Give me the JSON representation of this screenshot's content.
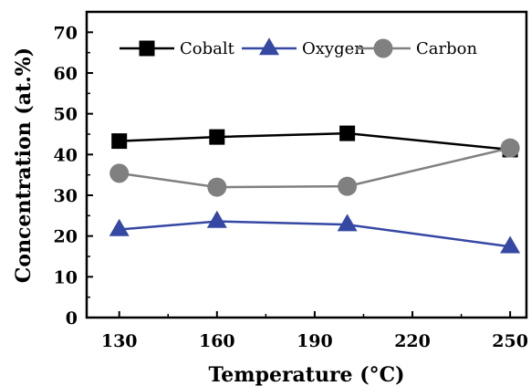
{
  "chart_data": {
    "type": "line",
    "xlabel": "Temperature (°C)",
    "ylabel": "Concentration (at.%)",
    "xlim": [
      120,
      255
    ],
    "ylim": [
      0,
      75
    ],
    "xticks": [
      130,
      160,
      190,
      220,
      250
    ],
    "yticks": [
      0,
      10,
      20,
      30,
      40,
      50,
      60,
      70
    ],
    "grid": false,
    "legend_position": "top",
    "series": [
      {
        "name": "Cobalt",
        "marker": "square",
        "color": "#000000",
        "x": [
          130,
          160,
          200,
          250
        ],
        "y": [
          43.3,
          44.3,
          45.2,
          41.2
        ]
      },
      {
        "name": "Oxygen",
        "marker": "triangle",
        "color": "#3548a3",
        "x": [
          130,
          160,
          200,
          250
        ],
        "y": [
          21.6,
          23.6,
          22.8,
          17.4
        ]
      },
      {
        "name": "Carbon",
        "marker": "circle",
        "color": "#808080",
        "x": [
          130,
          160,
          200,
          250
        ],
        "y": [
          35.4,
          32.0,
          32.2,
          41.6
        ]
      }
    ]
  }
}
